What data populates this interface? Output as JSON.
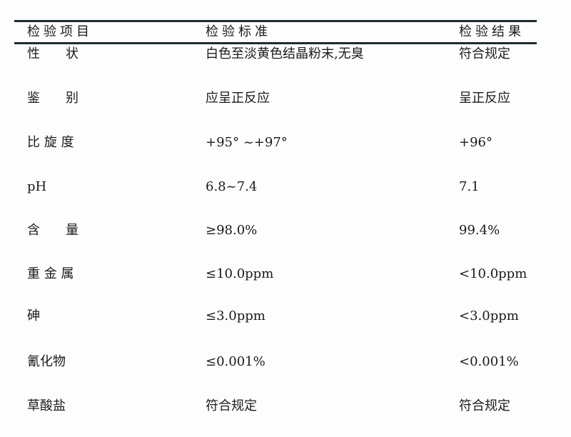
{
  "header": {
    "item": "检验项目",
    "standard": "检验标准",
    "result": "检验结果"
  },
  "rows": [
    {
      "item": "性　　状",
      "standard": "白色至淡黄色结晶粉末,无臭",
      "result": "符合规定"
    },
    {
      "item": "鉴　　别",
      "standard": "应呈正反应",
      "result": "呈正反应"
    },
    {
      "item": "比 旋 度",
      "standard": "+95° ~+97°",
      "result": "+96°"
    },
    {
      "item": "pH",
      "standard": "6.8~7.4",
      "result": "7.1"
    },
    {
      "item": "含　　量",
      "standard": "≥98.0%",
      "result": "99.4%"
    },
    {
      "item": "重 金 属",
      "standard": "≤10.0ppm",
      "result": "<10.0ppm"
    },
    {
      "item": "砷",
      "standard": "≤3.0ppm",
      "result": "<3.0ppm"
    },
    {
      "item": "氰化物",
      "standard": "≤0.001%",
      "result": "<0.001%"
    },
    {
      "item": "草酸盐",
      "standard": "符合规定",
      "result": "符合规定"
    }
  ]
}
